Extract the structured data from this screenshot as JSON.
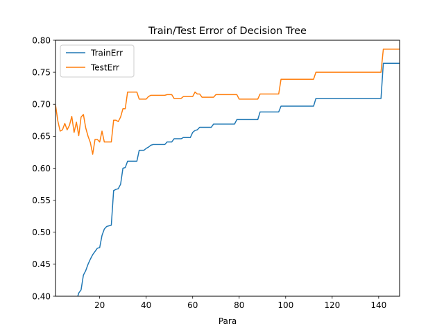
{
  "chart_data": {
    "type": "line",
    "title": "Train/Test Error of Decision Tree",
    "xlabel": "Para",
    "ylabel": "",
    "xlim": [
      1,
      149
    ],
    "ylim": [
      0.4,
      0.8
    ],
    "xticks": [
      20,
      40,
      60,
      80,
      100,
      120,
      140
    ],
    "yticks": [
      "0.40",
      "0.45",
      "0.50",
      "0.55",
      "0.60",
      "0.65",
      "0.70",
      "0.75",
      "0.80"
    ],
    "grid": false,
    "legend": "top-left",
    "series": [
      {
        "name": "TrainErr",
        "color": "#1f77b4",
        "points": [
          [
            10,
            0.393
          ],
          [
            11,
            0.405
          ],
          [
            12,
            0.41
          ],
          [
            13,
            0.433
          ],
          [
            14,
            0.44
          ],
          [
            15,
            0.45
          ],
          [
            16,
            0.458
          ],
          [
            17,
            0.465
          ],
          [
            18,
            0.47
          ],
          [
            19,
            0.475
          ],
          [
            20,
            0.476
          ],
          [
            21,
            0.495
          ],
          [
            22,
            0.505
          ],
          [
            23,
            0.509
          ],
          [
            24,
            0.51
          ],
          [
            25,
            0.511
          ],
          [
            26,
            0.565
          ],
          [
            27,
            0.567
          ],
          [
            28,
            0.568
          ],
          [
            29,
            0.575
          ],
          [
            30,
            0.6
          ],
          [
            31,
            0.601
          ],
          [
            32,
            0.611
          ],
          [
            33,
            0.611
          ],
          [
            34,
            0.611
          ],
          [
            35,
            0.611
          ],
          [
            36,
            0.611
          ],
          [
            37,
            0.628
          ],
          [
            38,
            0.628
          ],
          [
            39,
            0.628
          ],
          [
            40,
            0.631
          ],
          [
            41,
            0.633
          ],
          [
            42,
            0.636
          ],
          [
            43,
            0.637
          ],
          [
            44,
            0.637
          ],
          [
            45,
            0.637
          ],
          [
            46,
            0.637
          ],
          [
            47,
            0.637
          ],
          [
            48,
            0.637
          ],
          [
            49,
            0.641
          ],
          [
            50,
            0.641
          ],
          [
            51,
            0.641
          ],
          [
            52,
            0.646
          ],
          [
            53,
            0.646
          ],
          [
            54,
            0.646
          ],
          [
            55,
            0.646
          ],
          [
            56,
            0.648
          ],
          [
            57,
            0.648
          ],
          [
            58,
            0.648
          ],
          [
            59,
            0.648
          ],
          [
            60,
            0.656
          ],
          [
            61,
            0.659
          ],
          [
            62,
            0.66
          ],
          [
            63,
            0.664
          ],
          [
            64,
            0.664
          ],
          [
            65,
            0.664
          ],
          [
            66,
            0.664
          ],
          [
            67,
            0.664
          ],
          [
            68,
            0.664
          ],
          [
            69,
            0.669
          ],
          [
            70,
            0.669
          ],
          [
            75,
            0.669
          ],
          [
            78,
            0.669
          ],
          [
            79,
            0.676
          ],
          [
            80,
            0.676
          ],
          [
            85,
            0.676
          ],
          [
            88,
            0.676
          ],
          [
            89,
            0.688
          ],
          [
            90,
            0.688
          ],
          [
            95,
            0.688
          ],
          [
            97,
            0.688
          ],
          [
            98,
            0.697
          ],
          [
            105,
            0.697
          ],
          [
            112,
            0.697
          ],
          [
            113,
            0.709
          ],
          [
            120,
            0.709
          ],
          [
            130,
            0.709
          ],
          [
            141,
            0.709
          ],
          [
            142,
            0.764
          ],
          [
            149,
            0.764
          ]
        ]
      },
      {
        "name": "TestErr",
        "color": "#ff7f0e",
        "points": [
          [
            1,
            0.699
          ],
          [
            2,
            0.674
          ],
          [
            3,
            0.658
          ],
          [
            4,
            0.66
          ],
          [
            5,
            0.67
          ],
          [
            6,
            0.66
          ],
          [
            7,
            0.667
          ],
          [
            8,
            0.681
          ],
          [
            9,
            0.656
          ],
          [
            10,
            0.672
          ],
          [
            11,
            0.651
          ],
          [
            12,
            0.68
          ],
          [
            13,
            0.684
          ],
          [
            14,
            0.663
          ],
          [
            15,
            0.65
          ],
          [
            16,
            0.64
          ],
          [
            17,
            0.622
          ],
          [
            18,
            0.645
          ],
          [
            19,
            0.645
          ],
          [
            20,
            0.641
          ],
          [
            21,
            0.658
          ],
          [
            22,
            0.641
          ],
          [
            23,
            0.641
          ],
          [
            24,
            0.641
          ],
          [
            25,
            0.641
          ],
          [
            26,
            0.675
          ],
          [
            27,
            0.675
          ],
          [
            28,
            0.673
          ],
          [
            29,
            0.68
          ],
          [
            30,
            0.693
          ],
          [
            31,
            0.693
          ],
          [
            32,
            0.719
          ],
          [
            33,
            0.719
          ],
          [
            34,
            0.719
          ],
          [
            35,
            0.719
          ],
          [
            36,
            0.719
          ],
          [
            37,
            0.708
          ],
          [
            38,
            0.708
          ],
          [
            39,
            0.708
          ],
          [
            40,
            0.708
          ],
          [
            41,
            0.712
          ],
          [
            42,
            0.714
          ],
          [
            43,
            0.714
          ],
          [
            44,
            0.714
          ],
          [
            45,
            0.714
          ],
          [
            46,
            0.714
          ],
          [
            47,
            0.714
          ],
          [
            48,
            0.714
          ],
          [
            49,
            0.715
          ],
          [
            50,
            0.715
          ],
          [
            51,
            0.715
          ],
          [
            52,
            0.709
          ],
          [
            53,
            0.709
          ],
          [
            54,
            0.709
          ],
          [
            55,
            0.709
          ],
          [
            56,
            0.712
          ],
          [
            57,
            0.712
          ],
          [
            58,
            0.712
          ],
          [
            59,
            0.712
          ],
          [
            60,
            0.712
          ],
          [
            61,
            0.719
          ],
          [
            62,
            0.716
          ],
          [
            63,
            0.716
          ],
          [
            64,
            0.711
          ],
          [
            65,
            0.711
          ],
          [
            66,
            0.711
          ],
          [
            67,
            0.711
          ],
          [
            68,
            0.711
          ],
          [
            69,
            0.711
          ],
          [
            70,
            0.715
          ],
          [
            75,
            0.715
          ],
          [
            79,
            0.715
          ],
          [
            80,
            0.708
          ],
          [
            85,
            0.708
          ],
          [
            88,
            0.708
          ],
          [
            89,
            0.716
          ],
          [
            90,
            0.716
          ],
          [
            97,
            0.716
          ],
          [
            98,
            0.739
          ],
          [
            105,
            0.739
          ],
          [
            112,
            0.739
          ],
          [
            113,
            0.75
          ],
          [
            120,
            0.75
          ],
          [
            130,
            0.75
          ],
          [
            141,
            0.75
          ],
          [
            142,
            0.786
          ],
          [
            149,
            0.786
          ]
        ]
      }
    ]
  }
}
